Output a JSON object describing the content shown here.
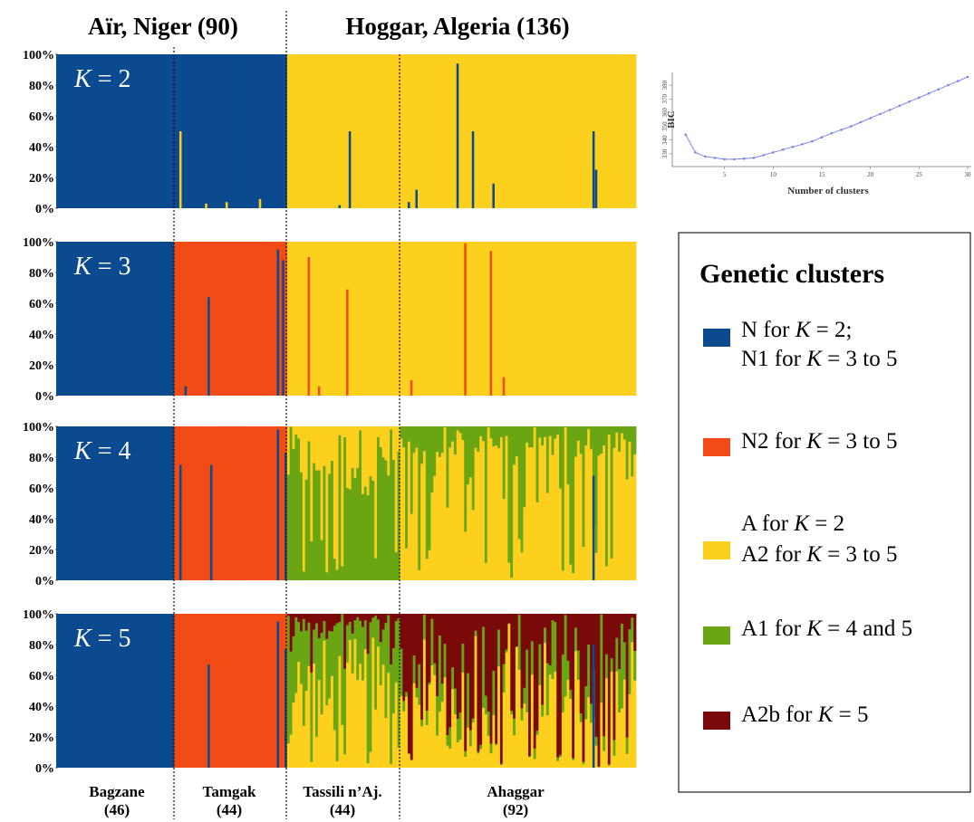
{
  "regions": [
    {
      "label": "Aïr, Niger (90)"
    },
    {
      "label": "Hoggar, Algeria (136)"
    }
  ],
  "sites": [
    {
      "name": "Bagzane",
      "n": "(46)",
      "count": 46
    },
    {
      "name": "Tamgak",
      "n": "(44)",
      "count": 44
    },
    {
      "name": "Tassili n’Aj.",
      "n": "(44)",
      "count": 44
    },
    {
      "name": "Ahaggar",
      "n": "(92)",
      "count": 92
    }
  ],
  "legend": {
    "title": "Genetic clusters",
    "items": [
      {
        "cluster": "N",
        "color": "#0b4a8f",
        "lines": [
          [
            "N for ",
            "K",
            " = 2;"
          ],
          [
            "N1 for ",
            "K",
            " = 3 to 5"
          ]
        ]
      },
      {
        "cluster": "N2",
        "color": "#f24b16",
        "lines": [
          [
            "N2 for ",
            "K",
            " = 3 to 5"
          ]
        ]
      },
      {
        "cluster": "A",
        "color": "#fdd01e",
        "lines": [
          [
            "A for ",
            "K",
            " = 2"
          ],
          [
            "A2 for ",
            "K",
            " = 3 to 5"
          ]
        ]
      },
      {
        "cluster": "A1",
        "color": "#6aa514",
        "lines": [
          [
            "A1 for ",
            "K",
            " = 4 and 5"
          ]
        ]
      },
      {
        "cluster": "A2b",
        "color": "#7a0a0a",
        "lines": [
          [
            "A2b for ",
            "K",
            " = 5"
          ]
        ]
      }
    ]
  },
  "chart_data": [
    {
      "type": "bar",
      "stacked": true,
      "description_of_values": "per-individual ancestry proportions (%) for each K",
      "yticks": [
        "100%",
        "80%",
        "60%",
        "40%",
        "20%",
        "0%"
      ],
      "ylim": [
        0,
        100
      ],
      "panels": [
        {
          "k_prefix": "K",
          "k_value": " = 2",
          "clusters": [
            "N",
            "A"
          ]
        },
        {
          "k_prefix": "K",
          "k_value": " = 3",
          "clusters": [
            "N",
            "N2",
            "A"
          ]
        },
        {
          "k_prefix": "K",
          "k_value": " = 4",
          "clusters": [
            "N",
            "N2",
            "A",
            "A1"
          ]
        },
        {
          "k_prefix": "K",
          "k_value": " = 5",
          "clusters": [
            "N",
            "N2",
            "A",
            "A1",
            "A2b"
          ]
        }
      ],
      "outliers": {
        "K2": [
          {
            "site": 1,
            "i": 2,
            "cluster": "A",
            "pct": 50
          },
          {
            "site": 1,
            "i": 12,
            "cluster": "A",
            "pct": 3
          },
          {
            "site": 1,
            "i": 20,
            "cluster": "A",
            "pct": 4
          },
          {
            "site": 1,
            "i": 33,
            "cluster": "A",
            "pct": 6
          },
          {
            "site": 2,
            "i": 24,
            "cluster": "N",
            "pct": 50
          },
          {
            "site": 2,
            "i": 20,
            "cluster": "N",
            "pct": 2
          },
          {
            "site": 3,
            "i": 3,
            "cluster": "N",
            "pct": 4
          },
          {
            "site": 3,
            "i": 6,
            "cluster": "N",
            "pct": 12
          },
          {
            "site": 3,
            "i": 22,
            "cluster": "N",
            "pct": 94
          },
          {
            "site": 3,
            "i": 28,
            "cluster": "N",
            "pct": 50
          },
          {
            "site": 3,
            "i": 36,
            "cluster": "N",
            "pct": 16
          },
          {
            "site": 3,
            "i": 75,
            "cluster": "N",
            "pct": 50
          },
          {
            "site": 3,
            "i": 76,
            "cluster": "N",
            "pct": 25
          }
        ],
        "K3": [
          {
            "site": 1,
            "i": 4,
            "cluster": "N",
            "pct": 6
          },
          {
            "site": 1,
            "i": 13,
            "cluster": "N",
            "pct": 64
          },
          {
            "site": 1,
            "i": 40,
            "cluster": "N",
            "pct": 95
          },
          {
            "site": 1,
            "i": 42,
            "cluster": "N",
            "pct": 88
          },
          {
            "site": 2,
            "i": 8,
            "cluster": "N2",
            "pct": 90
          },
          {
            "site": 2,
            "i": 12,
            "cluster": "N2",
            "pct": 6
          },
          {
            "site": 2,
            "i": 23,
            "cluster": "N2",
            "pct": 69
          },
          {
            "site": 3,
            "i": 4,
            "cluster": "N2",
            "pct": 10
          },
          {
            "site": 3,
            "i": 25,
            "cluster": "N2",
            "pct": 99
          },
          {
            "site": 3,
            "i": 35,
            "cluster": "N2",
            "pct": 94
          },
          {
            "site": 3,
            "i": 40,
            "cluster": "N2",
            "pct": 12
          }
        ],
        "K4": [
          {
            "site": 1,
            "i": 2,
            "cluster": "N",
            "pct": 75
          },
          {
            "site": 1,
            "i": 14,
            "cluster": "N",
            "pct": 75
          },
          {
            "site": 1,
            "i": 40,
            "cluster": "N",
            "pct": 98
          },
          {
            "site": 1,
            "i": 43,
            "cluster": "N",
            "pct": 83
          },
          {
            "site": 3,
            "i": 75,
            "cluster": "N",
            "pct": 68
          }
        ],
        "K5": [
          {
            "site": 1,
            "i": 13,
            "cluster": "N",
            "pct": 67
          },
          {
            "site": 1,
            "i": 40,
            "cluster": "N",
            "pct": 95
          },
          {
            "site": 1,
            "i": 43,
            "cluster": "N",
            "pct": 77
          },
          {
            "site": 3,
            "i": 75,
            "cluster": "N",
            "pct": 80
          }
        ]
      }
    },
    {
      "type": "line",
      "title": "",
      "xlabel": "Number of clusters",
      "ylabel": "BIC",
      "x": [
        1,
        2,
        3,
        4,
        5,
        6,
        7,
        8,
        9,
        10,
        11,
        12,
        13,
        14,
        15,
        16,
        17,
        18,
        19,
        20,
        21,
        22,
        23,
        24,
        25,
        26,
        27,
        28,
        29,
        30
      ],
      "y": [
        344,
        331,
        328,
        327,
        326,
        326,
        326.5,
        327,
        329,
        331,
        333,
        335,
        337,
        339,
        342,
        345,
        347.5,
        350,
        353,
        356,
        359,
        362,
        365,
        368,
        371,
        374,
        377,
        380,
        383,
        386
      ],
      "xticks": [
        "5",
        "10",
        "15",
        "20",
        "25",
        "30"
      ],
      "yticks": [
        "330",
        "340",
        "350",
        "360",
        "370",
        "380"
      ],
      "xlim": [
        0,
        30
      ],
      "ylim": [
        322,
        388
      ],
      "color": "#7b86ee"
    }
  ]
}
